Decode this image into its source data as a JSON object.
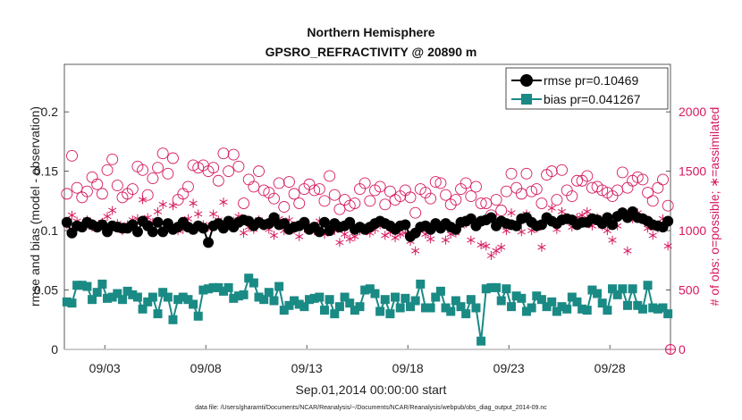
{
  "chart_data": {
    "type": "line",
    "title_lines": [
      "Northern Hemisphere",
      "GPSRO_REFRACTIVITY @ 20890 m"
    ],
    "xlabel": "Sep.01,2014 00:00:00 start",
    "ylabel": "rmse and bias (model - observation)",
    "y2label": "# of obs: o=possible; ∗=assimilated",
    "footnote": "data file: /Users/gharamti/Documents/NCAR/Reanalysis/~/Documents/NCAR/Reanalysis/webpub/obs_diag_output_2014-09.nc",
    "xlim": [
      1,
      31
    ],
    "ylim": [
      0,
      0.24
    ],
    "y2lim": [
      0,
      2400
    ],
    "x_ticks": [
      3,
      8,
      13,
      18,
      23,
      28
    ],
    "x_tick_labels": [
      "09/03",
      "09/08",
      "09/13",
      "09/18",
      "09/23",
      "09/28"
    ],
    "y_ticks": [
      "0",
      "0.05",
      "0.1",
      "0.15",
      "0.2"
    ],
    "y2_ticks": [
      "0",
      "500",
      "1000",
      "1500",
      "2000"
    ],
    "legend_position": "top-right",
    "colors": {
      "rmse": "#000000",
      "bias": "#1a8a85",
      "obs": "#d6185f",
      "zero_line": "#bbbbbb"
    },
    "series": [
      {
        "name": "rmse pr=0.10469",
        "marker": "circle",
        "x": [
          1.125,
          1.375,
          1.625,
          1.875,
          2.125,
          2.375,
          2.625,
          2.875,
          3.125,
          3.375,
          3.625,
          3.875,
          4.125,
          4.375,
          4.625,
          4.875,
          5.125,
          5.375,
          5.625,
          5.875,
          6.125,
          6.375,
          6.625,
          6.875,
          7.125,
          7.375,
          7.625,
          7.875,
          8.125,
          8.375,
          8.625,
          8.875,
          9.125,
          9.375,
          9.625,
          9.875,
          10.125,
          10.375,
          10.625,
          10.875,
          11.125,
          11.375,
          11.625,
          11.875,
          12.125,
          12.375,
          12.625,
          12.875,
          13.125,
          13.375,
          13.625,
          13.875,
          14.125,
          14.375,
          14.625,
          14.875,
          15.125,
          15.375,
          15.625,
          15.875,
          16.125,
          16.375,
          16.625,
          16.875,
          17.125,
          17.375,
          17.625,
          17.875,
          18.125,
          18.375,
          18.625,
          18.875,
          19.125,
          19.375,
          19.625,
          19.875,
          20.125,
          20.375,
          20.625,
          20.875,
          21.125,
          21.375,
          21.625,
          21.875,
          22.125,
          22.375,
          22.625,
          22.875,
          23.125,
          23.375,
          23.625,
          23.875,
          24.125,
          24.375,
          24.625,
          24.875,
          25.125,
          25.375,
          25.625,
          25.875,
          26.125,
          26.375,
          26.625,
          26.875,
          27.125,
          27.375,
          27.625,
          27.875,
          28.125,
          28.375,
          28.625,
          28.875,
          29.125,
          29.375,
          29.625,
          29.875,
          30.125,
          30.375,
          30.625,
          30.875
        ],
        "values": [
          0.107,
          0.098,
          0.104,
          0.103,
          0.107,
          0.105,
          0.103,
          0.105,
          0.099,
          0.104,
          0.103,
          0.102,
          0.102,
          0.105,
          0.099,
          0.108,
          0.104,
          0.099,
          0.107,
          0.099,
          0.106,
          0.101,
          0.103,
          0.107,
          0.103,
          0.101,
          0.104,
          0.102,
          0.09,
          0.104,
          0.106,
          0.102,
          0.108,
          0.103,
          0.107,
          0.109,
          0.108,
          0.104,
          0.107,
          0.105,
          0.106,
          0.111,
          0.105,
          0.106,
          0.101,
          0.103,
          0.104,
          0.107,
          0.101,
          0.103,
          0.099,
          0.107,
          0.1,
          0.106,
          0.103,
          0.104,
          0.107,
          0.101,
          0.103,
          0.101,
          0.103,
          0.106,
          0.108,
          0.106,
          0.104,
          0.101,
          0.104,
          0.105,
          0.095,
          0.098,
          0.103,
          0.104,
          0.101,
          0.106,
          0.102,
          0.106,
          0.103,
          0.101,
          0.107,
          0.108,
          0.11,
          0.104,
          0.108,
          0.109,
          0.111,
          0.104,
          0.108,
          0.106,
          0.105,
          0.104,
          0.11,
          0.111,
          0.107,
          0.104,
          0.105,
          0.111,
          0.108,
          0.106,
          0.109,
          0.11,
          0.109,
          0.105,
          0.107,
          0.107,
          0.11,
          0.109,
          0.106,
          0.111,
          0.105,
          0.112,
          0.115,
          0.111,
          0.116,
          0.111,
          0.11,
          0.108,
          0.105,
          0.104,
          0.103,
          0.108
        ]
      },
      {
        "name": "bias pr=0.041267",
        "marker": "square",
        "x": [
          1.125,
          1.375,
          1.625,
          1.875,
          2.125,
          2.375,
          2.625,
          2.875,
          3.125,
          3.375,
          3.625,
          3.875,
          4.125,
          4.375,
          4.625,
          4.875,
          5.125,
          5.375,
          5.625,
          5.875,
          6.125,
          6.375,
          6.625,
          6.875,
          7.125,
          7.375,
          7.625,
          7.875,
          8.125,
          8.375,
          8.625,
          8.875,
          9.125,
          9.375,
          9.625,
          9.875,
          10.125,
          10.375,
          10.625,
          10.875,
          11.125,
          11.375,
          11.625,
          11.875,
          12.125,
          12.375,
          12.625,
          12.875,
          13.125,
          13.375,
          13.625,
          13.875,
          14.125,
          14.375,
          14.625,
          14.875,
          15.125,
          15.375,
          15.625,
          15.875,
          16.125,
          16.375,
          16.625,
          16.875,
          17.125,
          17.375,
          17.625,
          17.875,
          18.125,
          18.375,
          18.625,
          18.875,
          19.125,
          19.375,
          19.625,
          19.875,
          20.125,
          20.375,
          20.625,
          20.875,
          21.125,
          21.375,
          21.625,
          21.875,
          22.125,
          22.375,
          22.625,
          22.875,
          23.125,
          23.375,
          23.625,
          23.875,
          24.125,
          24.375,
          24.625,
          24.875,
          25.125,
          25.375,
          25.625,
          25.875,
          26.125,
          26.375,
          26.625,
          26.875,
          27.125,
          27.375,
          27.625,
          27.875,
          28.125,
          28.375,
          28.625,
          28.875,
          29.125,
          29.375,
          29.625,
          29.875,
          30.125,
          30.375,
          30.625,
          30.875
        ],
        "values": [
          0.04,
          0.039,
          0.054,
          0.054,
          0.053,
          0.042,
          0.048,
          0.055,
          0.043,
          0.044,
          0.047,
          0.042,
          0.049,
          0.046,
          0.044,
          0.034,
          0.04,
          0.044,
          0.03,
          0.048,
          0.044,
          0.025,
          0.042,
          0.044,
          0.042,
          0.038,
          0.028,
          0.05,
          0.051,
          0.052,
          0.052,
          0.049,
          0.052,
          0.043,
          0.045,
          0.046,
          0.06,
          0.056,
          0.044,
          0.042,
          0.048,
          0.041,
          0.053,
          0.033,
          0.037,
          0.041,
          0.038,
          0.036,
          0.042,
          0.043,
          0.044,
          0.033,
          0.042,
          0.03,
          0.036,
          0.044,
          0.039,
          0.033,
          0.036,
          0.05,
          0.051,
          0.047,
          0.032,
          0.042,
          0.03,
          0.044,
          0.035,
          0.043,
          0.036,
          0.041,
          0.055,
          0.035,
          0.035,
          0.044,
          0.049,
          0.035,
          0.032,
          0.041,
          0.036,
          0.03,
          0.042,
          0.035,
          0.007,
          0.051,
          0.052,
          0.052,
          0.041,
          0.051,
          0.036,
          0.045,
          0.043,
          0.032,
          0.035,
          0.045,
          0.042,
          0.036,
          0.04,
          0.032,
          0.036,
          0.034,
          0.044,
          0.04,
          0.034,
          0.033,
          0.05,
          0.047,
          0.039,
          0.033,
          0.051,
          0.046,
          0.051,
          0.037,
          0.051,
          0.037,
          0.034,
          0.054,
          0.035,
          0.034,
          0.035,
          0.03
        ]
      },
      {
        "name": "possible",
        "axis": "right",
        "marker": "open-circle",
        "x": [
          1.125,
          1.375,
          1.625,
          1.875,
          2.125,
          2.375,
          2.625,
          2.875,
          3.125,
          3.375,
          3.625,
          3.875,
          4.125,
          4.375,
          4.625,
          4.875,
          5.125,
          5.375,
          5.625,
          5.875,
          6.125,
          6.375,
          6.625,
          6.875,
          7.125,
          7.375,
          7.625,
          7.875,
          8.125,
          8.375,
          8.625,
          8.875,
          9.125,
          9.375,
          9.625,
          9.875,
          10.125,
          10.375,
          10.625,
          10.875,
          11.125,
          11.375,
          11.625,
          11.875,
          12.125,
          12.375,
          12.625,
          12.875,
          13.125,
          13.375,
          13.625,
          13.875,
          14.125,
          14.375,
          14.625,
          14.875,
          15.125,
          15.375,
          15.625,
          15.875,
          16.125,
          16.375,
          16.625,
          16.875,
          17.125,
          17.375,
          17.625,
          17.875,
          18.125,
          18.375,
          18.625,
          18.875,
          19.125,
          19.375,
          19.625,
          19.875,
          20.125,
          20.375,
          20.625,
          20.875,
          21.125,
          21.375,
          21.625,
          21.875,
          22.125,
          22.375,
          22.625,
          22.875,
          23.125,
          23.375,
          23.625,
          23.875,
          24.125,
          24.375,
          24.625,
          24.875,
          25.125,
          25.375,
          25.625,
          25.875,
          26.125,
          26.375,
          26.625,
          26.875,
          27.125,
          27.375,
          27.625,
          27.875,
          28.125,
          28.375,
          28.625,
          28.875,
          29.125,
          29.375,
          29.625,
          29.875,
          30.125,
          30.375,
          30.625,
          30.875
        ],
        "values": [
          1310,
          1630,
          1360,
          1280,
          1330,
          1450,
          1390,
          1310,
          1510,
          1600,
          1380,
          1280,
          1310,
          1350,
          1540,
          1510,
          1300,
          1440,
          1530,
          1650,
          1480,
          1610,
          1260,
          1310,
          1370,
          1550,
          1530,
          1550,
          1500,
          1530,
          1420,
          1650,
          1500,
          1640,
          1540,
          1230,
          1430,
          1370,
          1500,
          1340,
          1320,
          1270,
          1400,
          1200,
          1410,
          1310,
          1230,
          1350,
          1390,
          1340,
          1350,
          1250,
          1460,
          1300,
          1180,
          1260,
          1210,
          1230,
          1350,
          1400,
          1250,
          1340,
          1370,
          1220,
          1330,
          1260,
          1290,
          1340,
          1280,
          1150,
          1350,
          1320,
          1270,
          1410,
          1400,
          1300,
          1220,
          1260,
          1350,
          1400,
          1290,
          1370,
          1230,
          1230,
          1130,
          1260,
          1170,
          1330,
          1480,
          1360,
          1310,
          1480,
          1330,
          1350,
          1230,
          1470,
          1500,
          1260,
          1510,
          1340,
          1290,
          1420,
          1420,
          1460,
          1360,
          1370,
          1340,
          1320,
          1290,
          1340,
          1490,
          1360,
          1420,
          1450,
          1430,
          1320,
          1250,
          1360,
          1430,
          1210
        ]
      },
      {
        "name": "assimilated",
        "axis": "right",
        "marker": "asterisk",
        "x": [
          1.125,
          1.375,
          1.625,
          1.875,
          2.125,
          2.375,
          2.625,
          2.875,
          3.125,
          3.375,
          3.625,
          3.875,
          4.125,
          4.375,
          4.625,
          4.875,
          5.125,
          5.375,
          5.625,
          5.875,
          6.125,
          6.375,
          6.625,
          6.875,
          7.125,
          7.375,
          7.625,
          7.875,
          8.125,
          8.375,
          8.625,
          8.875,
          9.125,
          9.375,
          9.625,
          9.875,
          10.125,
          10.375,
          10.625,
          10.875,
          11.125,
          11.375,
          11.625,
          11.875,
          12.125,
          12.375,
          12.625,
          12.875,
          13.125,
          13.375,
          13.625,
          13.875,
          14.125,
          14.375,
          14.625,
          14.875,
          15.125,
          15.375,
          15.625,
          15.875,
          16.125,
          16.375,
          16.625,
          16.875,
          17.125,
          17.375,
          17.625,
          17.875,
          18.125,
          18.375,
          18.625,
          18.875,
          19.125,
          19.375,
          19.625,
          19.875,
          20.125,
          20.375,
          20.625,
          20.875,
          21.125,
          21.375,
          21.625,
          21.875,
          22.125,
          22.375,
          22.625,
          22.875,
          23.125,
          23.375,
          23.625,
          23.875,
          24.125,
          24.375,
          24.625,
          24.875,
          25.125,
          25.375,
          25.625,
          25.875,
          26.125,
          26.375,
          26.625,
          26.875,
          27.125,
          27.375,
          27.625,
          27.875,
          28.125,
          28.375,
          28.625,
          28.875,
          29.125,
          29.375,
          29.625,
          29.875,
          30.125,
          30.375,
          30.625,
          30.875
        ],
        "values": [
          1050,
          1130,
          1080,
          1040,
          1090,
          1030,
          1020,
          1070,
          1120,
          1170,
          1060,
          1000,
          1050,
          1090,
          1100,
          1260,
          1110,
          1070,
          1160,
          1220,
          1060,
          1210,
          1000,
          1010,
          1100,
          1230,
          1140,
          1050,
          1030,
          1140,
          1090,
          1240,
          1060,
          1080,
          1120,
          980,
          1030,
          1010,
          1090,
          1040,
          1010,
          960,
          1100,
          1000,
          1090,
          1010,
          950,
          1020,
          1040,
          1000,
          1080,
          970,
          1020,
          1000,
          900,
          970,
          930,
          950,
          1000,
          1020,
          980,
          1010,
          1050,
          960,
          990,
          940,
          970,
          980,
          910,
          830,
          1010,
          970,
          930,
          1050,
          1020,
          920,
          970,
          980,
          1040,
          1060,
          920,
          1040,
          880,
          870,
          790,
          830,
          860,
          1000,
          1150,
          1040,
          990,
          1140,
          1000,
          1020,
          860,
          1110,
          1190,
          1010,
          1160,
          1090,
          1030,
          1110,
          1130,
          1160,
          1040,
          1110,
          1040,
          1000,
          920,
          1040,
          1160,
          830,
          1100,
          1150,
          1110,
          1020,
          960,
          1020,
          1100,
          870
        ]
      }
    ]
  }
}
